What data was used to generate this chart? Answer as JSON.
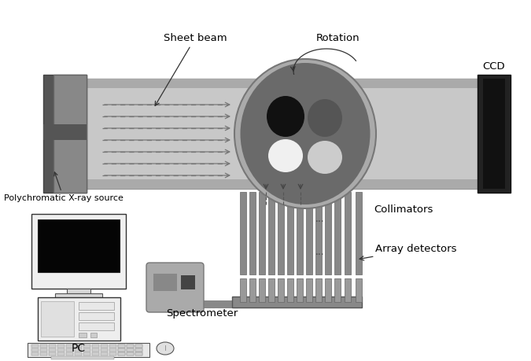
{
  "bg_color": "#ffffff",
  "tube_fill": "#c8c8c8",
  "tube_border": "#999999",
  "tube_dark_strip": "#aaaaaa",
  "source_body": "#888888",
  "source_dark": "#555555",
  "ccd_body": "#222222",
  "phantom_outer": "#888888",
  "phantom_dark_bg": "#6a6a6a",
  "incl_black": "#111111",
  "incl_darkgray": "#555555",
  "incl_white": "#f0f0f0",
  "incl_lightgray": "#cccccc",
  "coll_fill": "#888888",
  "coll_dark": "#666666",
  "base_fill": "#888888",
  "spec_fill": "#aaaaaa",
  "spec_dark1": "#888888",
  "spec_dark2": "#444444",
  "wire_color": "#888888",
  "arrow_color": "#333333",
  "dash_color": "#777777",
  "text_color": "#000000",
  "labels": {
    "sheet_beam": "Sheet beam",
    "rotation": "Rotation",
    "ccd": "CCD",
    "source": "Polychromatic X-ray source",
    "collimators": "Collimators",
    "array_detectors": "Array detectors",
    "spectrometer": "Spectrometer",
    "pc": "PC"
  },
  "figsize": [
    6.75,
    4.59
  ],
  "dpi": 100
}
